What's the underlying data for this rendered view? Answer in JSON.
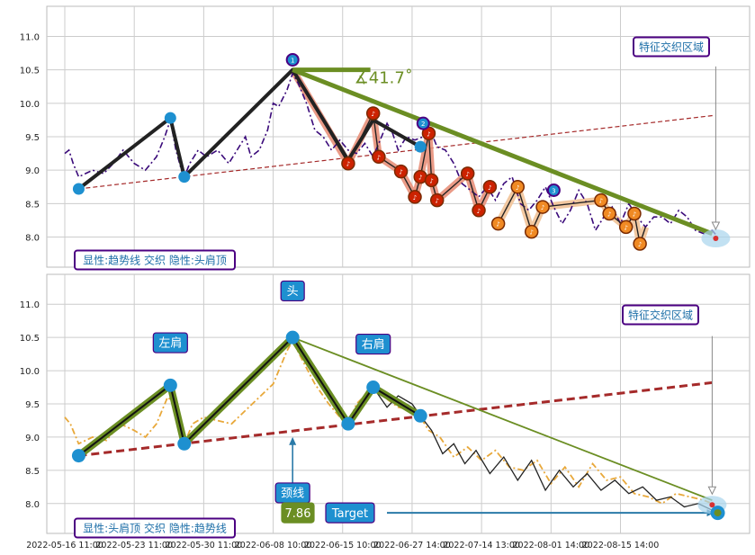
{
  "chart_data": [
    {
      "type": "line",
      "panel": "top",
      "ylim": [
        7.55,
        11.45
      ],
      "yticks": [
        "8.0",
        "8.5",
        "9.0",
        "9.5",
        "10.0",
        "10.5",
        "11.0"
      ],
      "grid": true,
      "price_series": [
        [
          0,
          9.25
        ],
        [
          3,
          9.3
        ],
        [
          6,
          9.1
        ],
        [
          10,
          8.9
        ],
        [
          15,
          8.95
        ],
        [
          20,
          9.0
        ],
        [
          28,
          8.95
        ],
        [
          35,
          9.1
        ],
        [
          42,
          9.3
        ],
        [
          50,
          9.1
        ],
        [
          58,
          9.0
        ],
        [
          66,
          9.2
        ],
        [
          72,
          9.5
        ],
        [
          76,
          9.75
        ],
        [
          80,
          9.3
        ],
        [
          84,
          9.0
        ],
        [
          86,
          8.9
        ],
        [
          90,
          9.1
        ],
        [
          96,
          9.3
        ],
        [
          102,
          9.2
        ],
        [
          110,
          9.3
        ],
        [
          118,
          9.1
        ],
        [
          124,
          9.3
        ],
        [
          130,
          9.5
        ],
        [
          134,
          9.2
        ],
        [
          140,
          9.3
        ],
        [
          146,
          9.6
        ],
        [
          150,
          10.0
        ],
        [
          154,
          9.95
        ],
        [
          160,
          10.2
        ],
        [
          164,
          10.45
        ],
        [
          168,
          10.3
        ],
        [
          174,
          10.0
        ],
        [
          180,
          9.6
        ],
        [
          186,
          9.5
        ],
        [
          192,
          9.3
        ],
        [
          198,
          9.45
        ],
        [
          204,
          9.3
        ],
        [
          210,
          9.25
        ],
        [
          216,
          9.4
        ],
        [
          222,
          9.2
        ],
        [
          228,
          9.5
        ],
        [
          232,
          9.7
        ],
        [
          236,
          9.55
        ],
        [
          240,
          9.3
        ],
        [
          246,
          9.5
        ],
        [
          252,
          9.45
        ],
        [
          258,
          9.5
        ],
        [
          264,
          9.55
        ],
        [
          268,
          9.35
        ],
        [
          274,
          9.3
        ],
        [
          280,
          9.1
        ],
        [
          286,
          8.8
        ],
        [
          292,
          8.7
        ],
        [
          298,
          8.6
        ],
        [
          304,
          8.75
        ],
        [
          310,
          8.55
        ],
        [
          316,
          8.8
        ],
        [
          322,
          8.9
        ],
        [
          328,
          8.5
        ],
        [
          334,
          8.4
        ],
        [
          340,
          8.55
        ],
        [
          346,
          8.75
        ],
        [
          352,
          8.45
        ],
        [
          358,
          8.2
        ],
        [
          364,
          8.4
        ],
        [
          370,
          8.7
        ],
        [
          376,
          8.5
        ],
        [
          382,
          8.1
        ],
        [
          388,
          8.3
        ],
        [
          394,
          8.45
        ],
        [
          400,
          8.2
        ],
        [
          406,
          8.5
        ],
        [
          412,
          8.3
        ],
        [
          418,
          8.15
        ],
        [
          424,
          8.3
        ],
        [
          430,
          8.3
        ],
        [
          436,
          8.2
        ],
        [
          442,
          8.4
        ],
        [
          448,
          8.3
        ],
        [
          454,
          8.1
        ],
        [
          460,
          8.05
        ],
        [
          466,
          8.1
        ],
        [
          470,
          8.0
        ]
      ],
      "pattern_points": [
        [
          10,
          8.72
        ],
        [
          76,
          9.78
        ],
        [
          86,
          8.9
        ],
        [
          164,
          10.5
        ],
        [
          204,
          9.15
        ],
        [
          222,
          9.75
        ],
        [
          256,
          9.35
        ]
      ],
      "trend_line": {
        "from": [
          164,
          10.5
        ],
        "to": [
          466,
          8.05
        ]
      },
      "angle_marker_end": [
        220,
        10.5
      ],
      "angle_label": "∡41.7˚",
      "support_line": {
        "from": [
          10,
          8.72
        ],
        "to": [
          468,
          9.82
        ]
      },
      "reversal_markers": [
        [
          204,
          9.1
        ],
        [
          222,
          9.85
        ],
        [
          226,
          9.2
        ],
        [
          242,
          8.98
        ],
        [
          252,
          8.6
        ],
        [
          256,
          8.9
        ],
        [
          262,
          9.55
        ],
        [
          264,
          8.85
        ],
        [
          268,
          8.55
        ],
        [
          290,
          8.95
        ],
        [
          298,
          8.4
        ],
        [
          306,
          8.75
        ],
        [
          312,
          8.2
        ],
        [
          326,
          8.75
        ],
        [
          336,
          8.08
        ],
        [
          344,
          8.45
        ],
        [
          386,
          8.55
        ],
        [
          392,
          8.35
        ],
        [
          404,
          8.15
        ],
        [
          410,
          8.35
        ],
        [
          414,
          7.9
        ]
      ],
      "numbered_markers": [
        {
          "x": 164,
          "y": 10.65,
          "label": "1"
        },
        {
          "x": 258,
          "y": 9.7,
          "label": "2"
        },
        {
          "x": 352,
          "y": 8.7,
          "label": "3"
        }
      ],
      "zone_point": [
        466,
        7.98
      ],
      "zone_label": "特征交织区域",
      "panel_label": "显性:趋势线 交织 隐性:头肩顶"
    },
    {
      "type": "line",
      "panel": "bottom",
      "ylim": [
        7.55,
        11.45
      ],
      "yticks": [
        "8.0",
        "8.5",
        "9.0",
        "9.5",
        "10.0",
        "10.5",
        "11.0"
      ],
      "grid": true,
      "price_series": [
        [
          0,
          9.3
        ],
        [
          4,
          9.2
        ],
        [
          10,
          8.9
        ],
        [
          20,
          9.0
        ],
        [
          30,
          8.95
        ],
        [
          40,
          9.2
        ],
        [
          50,
          9.1
        ],
        [
          58,
          9.0
        ],
        [
          66,
          9.2
        ],
        [
          74,
          9.6
        ],
        [
          80,
          9.5
        ],
        [
          86,
          8.9
        ],
        [
          92,
          9.2
        ],
        [
          100,
          9.3
        ],
        [
          110,
          9.25
        ],
        [
          120,
          9.2
        ],
        [
          130,
          9.4
        ],
        [
          140,
          9.6
        ],
        [
          150,
          9.8
        ],
        [
          160,
          10.3
        ],
        [
          164,
          10.45
        ],
        [
          170,
          10.2
        ],
        [
          180,
          9.8
        ],
        [
          190,
          9.5
        ],
        [
          198,
          9.3
        ],
        [
          204,
          9.2
        ],
        [
          210,
          9.5
        ],
        [
          222,
          9.75
        ],
        [
          230,
          9.6
        ],
        [
          240,
          9.45
        ],
        [
          250,
          9.4
        ],
        [
          256,
          9.3
        ],
        [
          262,
          9.1
        ],
        [
          270,
          9.0
        ],
        [
          280,
          8.7
        ],
        [
          290,
          8.85
        ],
        [
          300,
          8.65
        ],
        [
          310,
          8.8
        ],
        [
          320,
          8.55
        ],
        [
          330,
          8.5
        ],
        [
          340,
          8.65
        ],
        [
          350,
          8.3
        ],
        [
          360,
          8.55
        ],
        [
          370,
          8.25
        ],
        [
          380,
          8.6
        ],
        [
          390,
          8.35
        ],
        [
          400,
          8.4
        ],
        [
          410,
          8.15
        ],
        [
          420,
          8.1
        ],
        [
          430,
          8.0
        ],
        [
          440,
          8.15
        ],
        [
          450,
          8.1
        ],
        [
          460,
          8.05
        ],
        [
          466,
          8.0
        ]
      ],
      "head_shoulder_points": [
        [
          10,
          8.72
        ],
        [
          76,
          9.78
        ],
        [
          86,
          8.9
        ],
        [
          164,
          10.5
        ],
        [
          204,
          9.2
        ],
        [
          222,
          9.75
        ],
        [
          256,
          9.32
        ]
      ],
      "black_price_path": [
        [
          222,
          9.75
        ],
        [
          232,
          9.45
        ],
        [
          240,
          9.62
        ],
        [
          250,
          9.5
        ],
        [
          256,
          9.32
        ],
        [
          264,
          9.1
        ],
        [
          272,
          8.75
        ],
        [
          280,
          8.9
        ],
        [
          288,
          8.6
        ],
        [
          296,
          8.8
        ],
        [
          306,
          8.45
        ],
        [
          316,
          8.7
        ],
        [
          326,
          8.35
        ],
        [
          336,
          8.65
        ],
        [
          346,
          8.2
        ],
        [
          356,
          8.5
        ],
        [
          366,
          8.25
        ],
        [
          376,
          8.45
        ],
        [
          386,
          8.2
        ],
        [
          396,
          8.35
        ],
        [
          406,
          8.15
        ],
        [
          416,
          8.25
        ],
        [
          426,
          8.05
        ],
        [
          436,
          8.1
        ],
        [
          446,
          7.95
        ],
        [
          456,
          8.0
        ],
        [
          466,
          7.9
        ]
      ],
      "neckline": {
        "from": [
          10,
          8.72
        ],
        "to": [
          466,
          9.82
        ]
      },
      "trend_line": {
        "from": [
          164,
          10.5
        ],
        "to": [
          466,
          8.05
        ]
      },
      "labels": {
        "left_shoulder": "左肩",
        "head": "头",
        "right_shoulder": "右肩",
        "neckline": "颈线"
      },
      "target_value": "7.86",
      "target_label": "Target",
      "target_point": [
        470,
        7.86
      ],
      "zone_point": [
        466,
        7.98
      ],
      "zone_label": "特征交织区域",
      "panel_label": "显性:头肩顶 交织 隐性:趋势线"
    }
  ],
  "x_tick_labels": [
    {
      "x": 0,
      "label": "2022-05-16 11:00"
    },
    {
      "x": 50,
      "label": "2022-05-23 11:00"
    },
    {
      "x": 100,
      "label": "2022-05-30 11:00"
    },
    {
      "x": 150,
      "label": "2022-06-08 10:00"
    },
    {
      "x": 200,
      "label": "2022-06-15 10:00"
    },
    {
      "x": 250,
      "label": "2022-06-27 14:00"
    },
    {
      "x": 300,
      "label": "2022-07-14 13:00"
    },
    {
      "x": 350,
      "label": "2022-08-01 14:00"
    },
    {
      "x": 400,
      "label": "2022-08-15 14:00"
    }
  ],
  "colors": {
    "grid": "#cccccc",
    "frame": "#bbbbbb",
    "price_top": "#3a0a7a",
    "price_bottom": "#e8a83a",
    "pattern_black": "#222222",
    "trend_green": "#6b8e23",
    "support_red": "#a52a2a",
    "marker_blue": "#1e90d0",
    "reversal_red": "#cc2200",
    "reversal_orange": "#f08a24",
    "salmon": "#e8907a",
    "label_bg": "#1e90d0",
    "panel_label_border": "#4b0082",
    "panel_label_text": "#1e6fa8"
  }
}
